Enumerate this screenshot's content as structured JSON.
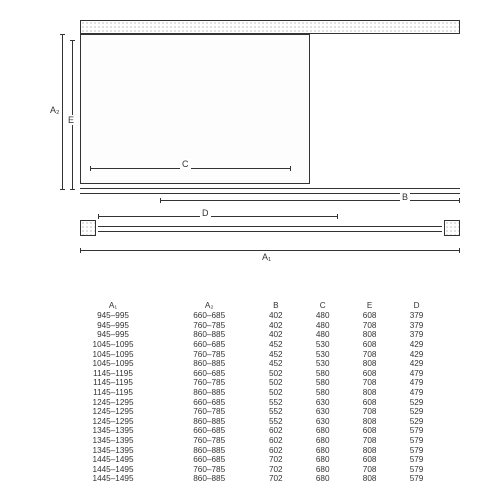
{
  "diagram": {
    "labels": {
      "A1": "A₁",
      "A2": "A₂",
      "B": "B",
      "C": "C",
      "D": "D",
      "E": "E"
    },
    "colors": {
      "line": "#333333",
      "background": "#ffffff",
      "hatch": "#888888"
    },
    "line_width": 1,
    "font_size_labels": 9
  },
  "table": {
    "columns": [
      "A₁",
      "A₂",
      "B",
      "C",
      "E",
      "D"
    ],
    "rows": [
      [
        "945–995",
        "660–685",
        "402",
        "480",
        "608",
        "379"
      ],
      [
        "945–995",
        "760–785",
        "402",
        "480",
        "708",
        "379"
      ],
      [
        "945–995",
        "860–885",
        "402",
        "480",
        "808",
        "379"
      ],
      [
        "1045–1095",
        "660–685",
        "452",
        "530",
        "608",
        "429"
      ],
      [
        "1045–1095",
        "760–785",
        "452",
        "530",
        "708",
        "429"
      ],
      [
        "1045–1095",
        "860–885",
        "452",
        "530",
        "808",
        "429"
      ],
      [
        "1145–1195",
        "660–685",
        "502",
        "580",
        "608",
        "479"
      ],
      [
        "1145–1195",
        "760–785",
        "502",
        "580",
        "708",
        "479"
      ],
      [
        "1145–1195",
        "860–885",
        "502",
        "580",
        "808",
        "479"
      ],
      [
        "1245–1295",
        "660–685",
        "552",
        "630",
        "608",
        "529"
      ],
      [
        "1245–1295",
        "760–785",
        "552",
        "630",
        "708",
        "529"
      ],
      [
        "1245–1295",
        "860–885",
        "552",
        "630",
        "808",
        "529"
      ],
      [
        "1345–1395",
        "660–685",
        "602",
        "680",
        "608",
        "579"
      ],
      [
        "1345–1395",
        "760–785",
        "602",
        "680",
        "708",
        "579"
      ],
      [
        "1345–1395",
        "860–885",
        "602",
        "680",
        "808",
        "579"
      ],
      [
        "1445–1495",
        "660–685",
        "702",
        "680",
        "608",
        "579"
      ],
      [
        "1445–1495",
        "760–785",
        "702",
        "680",
        "708",
        "579"
      ],
      [
        "1445–1495",
        "860–885",
        "702",
        "680",
        "808",
        "579"
      ]
    ],
    "font_size": 8.2,
    "text_color": "#333333",
    "align": "center"
  }
}
